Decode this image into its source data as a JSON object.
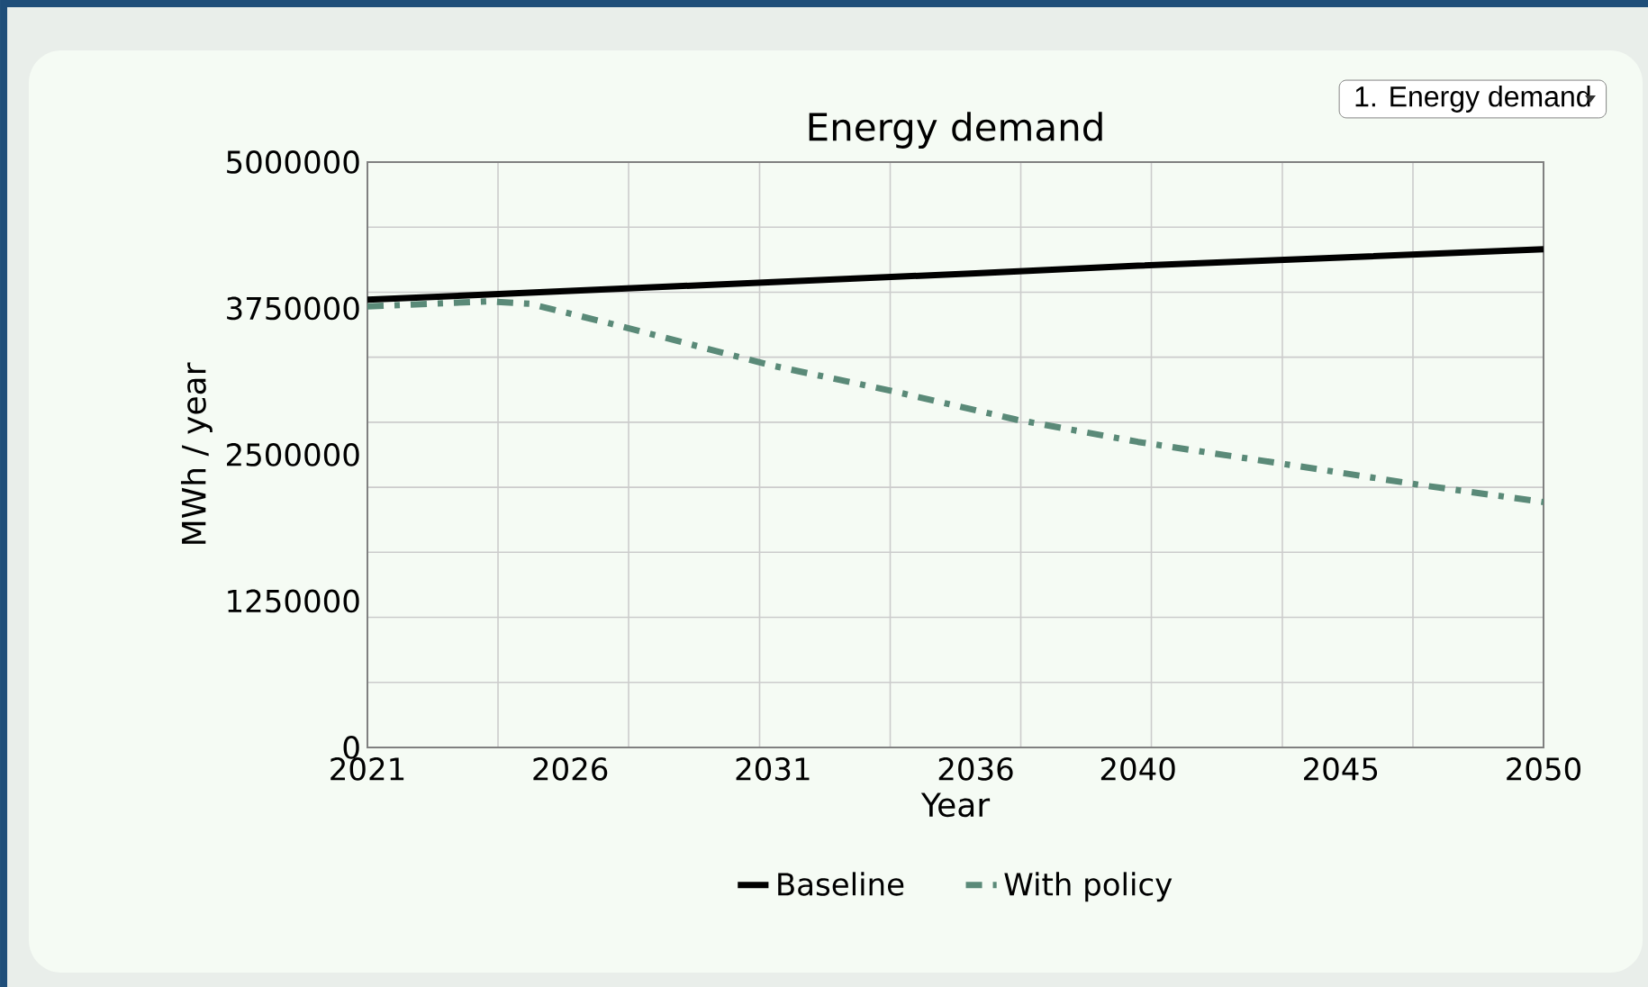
{
  "chart_data": {
    "type": "line",
    "title": "Energy demand",
    "xlabel": "Year",
    "ylabel": "MWh / year",
    "annotations": [
      "1. Energy demand"
    ],
    "xlim": [
      2021,
      2050
    ],
    "ylim": [
      0,
      5000000
    ],
    "xticks": [
      2021,
      {
        "value": 2024.22,
        "label": null
      },
      2026,
      {
        "value": 2027.44,
        "label": null
      },
      {
        "value": 2030.67,
        "label": null
      },
      2031,
      {
        "value": 2033.89,
        "label": null
      },
      2036,
      {
        "value": 2037.11,
        "label": null
      },
      2040,
      {
        "value": 2040.33,
        "label": null
      },
      {
        "value": 2043.56,
        "label": null
      },
      2045,
      {
        "value": 2046.78,
        "label": null
      },
      2050
    ],
    "yticks": [
      0,
      {
        "value": 555556,
        "label": null
      },
      {
        "value": 1111111,
        "label": null
      },
      1250000,
      {
        "value": 1666667,
        "label": null
      },
      {
        "value": 2222222,
        "label": null
      },
      2500000,
      {
        "value": 2777778,
        "label": null
      },
      {
        "value": 3333333,
        "label": null
      },
      3750000,
      {
        "value": 3888889,
        "label": null
      },
      {
        "value": 4444444,
        "label": null
      },
      5000000
    ],
    "grid": true,
    "legend": "bottom",
    "series": [
      {
        "name": "Baseline",
        "color": "#000000",
        "line_style": "solid",
        "x": [
          2021,
          2026,
          2031,
          2036,
          2040,
          2045,
          2050
        ],
        "values": [
          3824000,
          3900000,
          3975000,
          4050000,
          4115000,
          4185000,
          4256000
        ]
      },
      {
        "name": "With policy",
        "color": "#5a8a78",
        "line_style": "dashdot",
        "x": [
          2021,
          2024,
          2025,
          2027,
          2031,
          2034,
          2037,
          2040,
          2044,
          2047,
          2050
        ],
        "values": [
          3768000,
          3810000,
          3790000,
          3620000,
          3260000,
          3040000,
          2800000,
          2610000,
          2400000,
          2240000,
          2096000
        ]
      }
    ]
  }
}
